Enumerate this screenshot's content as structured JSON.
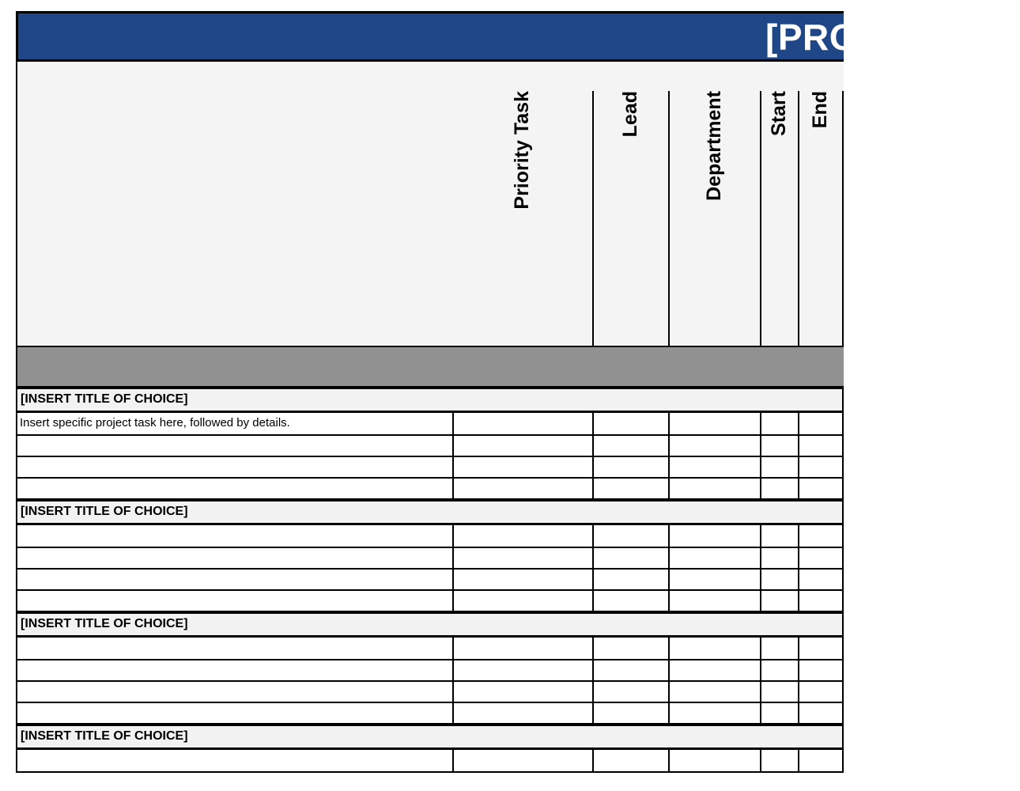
{
  "title_bar": {
    "text": "[PRO"
  },
  "columns": [
    {
      "label": "Priority Task"
    },
    {
      "label": "Lead"
    },
    {
      "label": "Department"
    },
    {
      "label": "Start"
    },
    {
      "label": "End"
    }
  ],
  "sections": [
    {
      "title": "[INSERT TITLE OF CHOICE]",
      "rows": [
        "Insert specific project task here, followed by details.",
        "",
        "",
        ""
      ]
    },
    {
      "title": "[INSERT TITLE OF CHOICE]",
      "rows": [
        "",
        "",
        "",
        ""
      ]
    },
    {
      "title": "[INSERT TITLE OF CHOICE]",
      "rows": [
        "",
        "",
        "",
        ""
      ]
    },
    {
      "title": "[INSERT TITLE OF CHOICE]",
      "rows": [
        ""
      ]
    }
  ],
  "colors": {
    "page_bg": "#FFFFFF",
    "title_bar_bg": "#1F4687",
    "title_text": "#FFFFFF",
    "header_band_bg": "#F4F4F4",
    "separator_band_bg": "#919191",
    "section_title_bg": "#F2F2F2",
    "row_bg": "#FFFFFF",
    "grid_border": "#000000"
  }
}
